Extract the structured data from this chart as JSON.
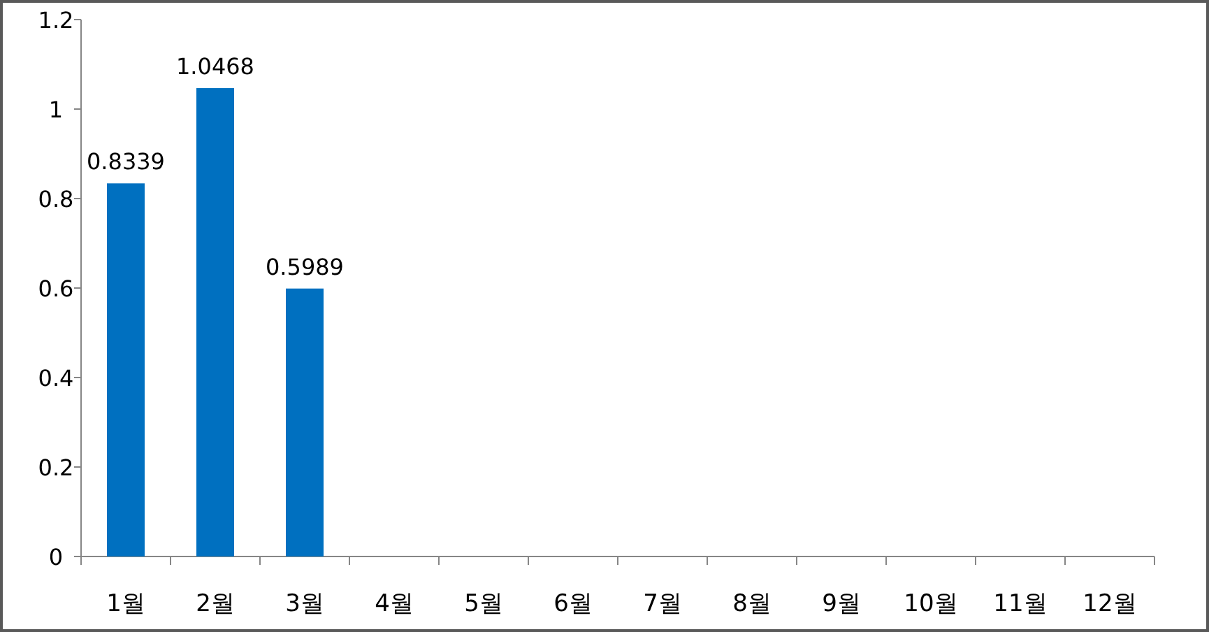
{
  "chart_data": {
    "type": "bar",
    "categories": [
      "1월",
      "2월",
      "3월",
      "4월",
      "5월",
      "6월",
      "7월",
      "8월",
      "9월",
      "10월",
      "11월",
      "12월"
    ],
    "values": [
      0.8339,
      1.0468,
      0.5989,
      null,
      null,
      null,
      null,
      null,
      null,
      null,
      null,
      null
    ],
    "color": "#0070c0",
    "ylim": [
      0,
      1.2
    ],
    "yticks": [
      0,
      0.2,
      0.4,
      0.6,
      0.8,
      1,
      1.2
    ],
    "data_labels": true,
    "grid": false
  }
}
